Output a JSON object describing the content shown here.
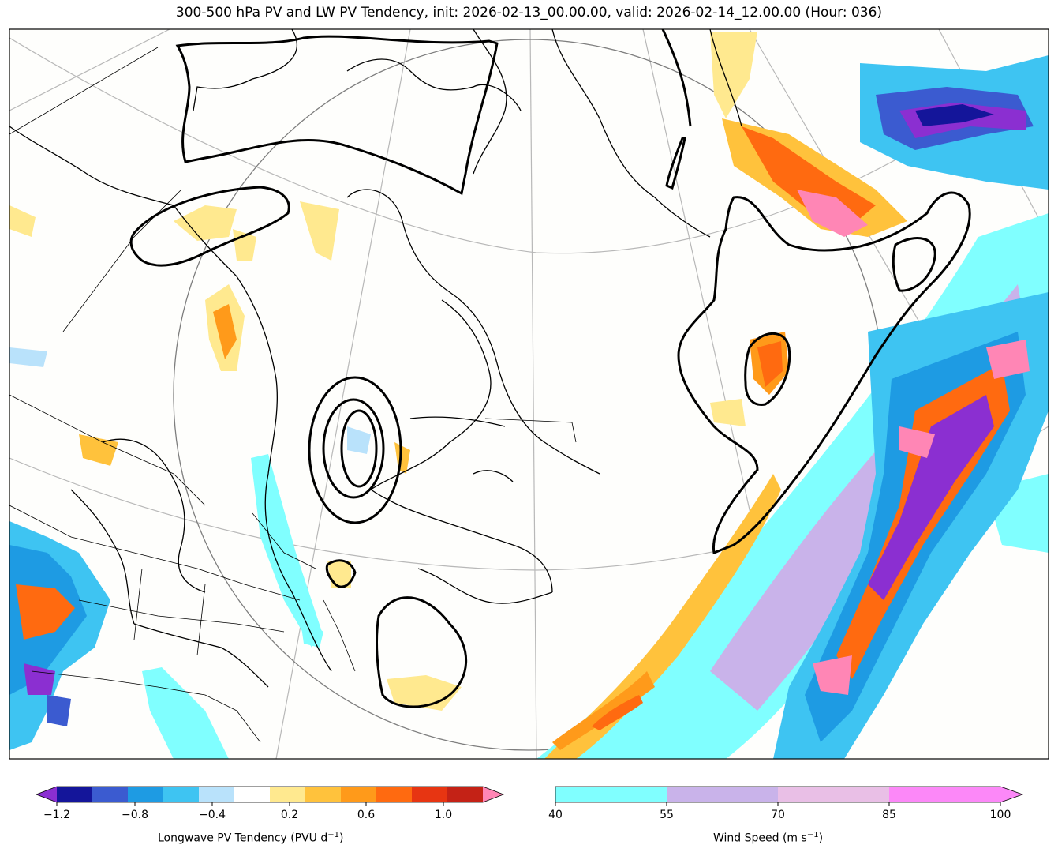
{
  "title": "300-500 hPa PV and LW PV Tendency, init: 2026-02-13_00.00.00, valid: 2026-02-14_12.00.00 (Hour: 036)",
  "colorbars": {
    "pv_tendency": {
      "label": "Longwave PV Tendency (PVU d",
      "label_sup": "−1",
      "label_end": ")",
      "ticks": [
        "−1.2",
        "−0.8",
        "−0.4",
        "0.2",
        "0.6",
        "1.0"
      ],
      "colors": [
        "#8b2fd1",
        "#14159a",
        "#3b5bd0",
        "#1e9be3",
        "#3ec4f2",
        "#b9e2fb",
        "#ffffff",
        "#ffe98f",
        "#ffc23c",
        "#ff9a1a",
        "#ff6a10",
        "#e73512",
        "#c42216",
        "#ff86b5"
      ]
    },
    "wind_speed": {
      "label": "Wind Speed (m s",
      "label_sup": "−1",
      "label_end": ")",
      "ticks": [
        "40",
        "55",
        "70",
        "85",
        "100"
      ],
      "colors": [
        "#80ffff",
        "#c9b3ea",
        "#e9bfe6",
        "#fc88f8"
      ]
    }
  }
}
